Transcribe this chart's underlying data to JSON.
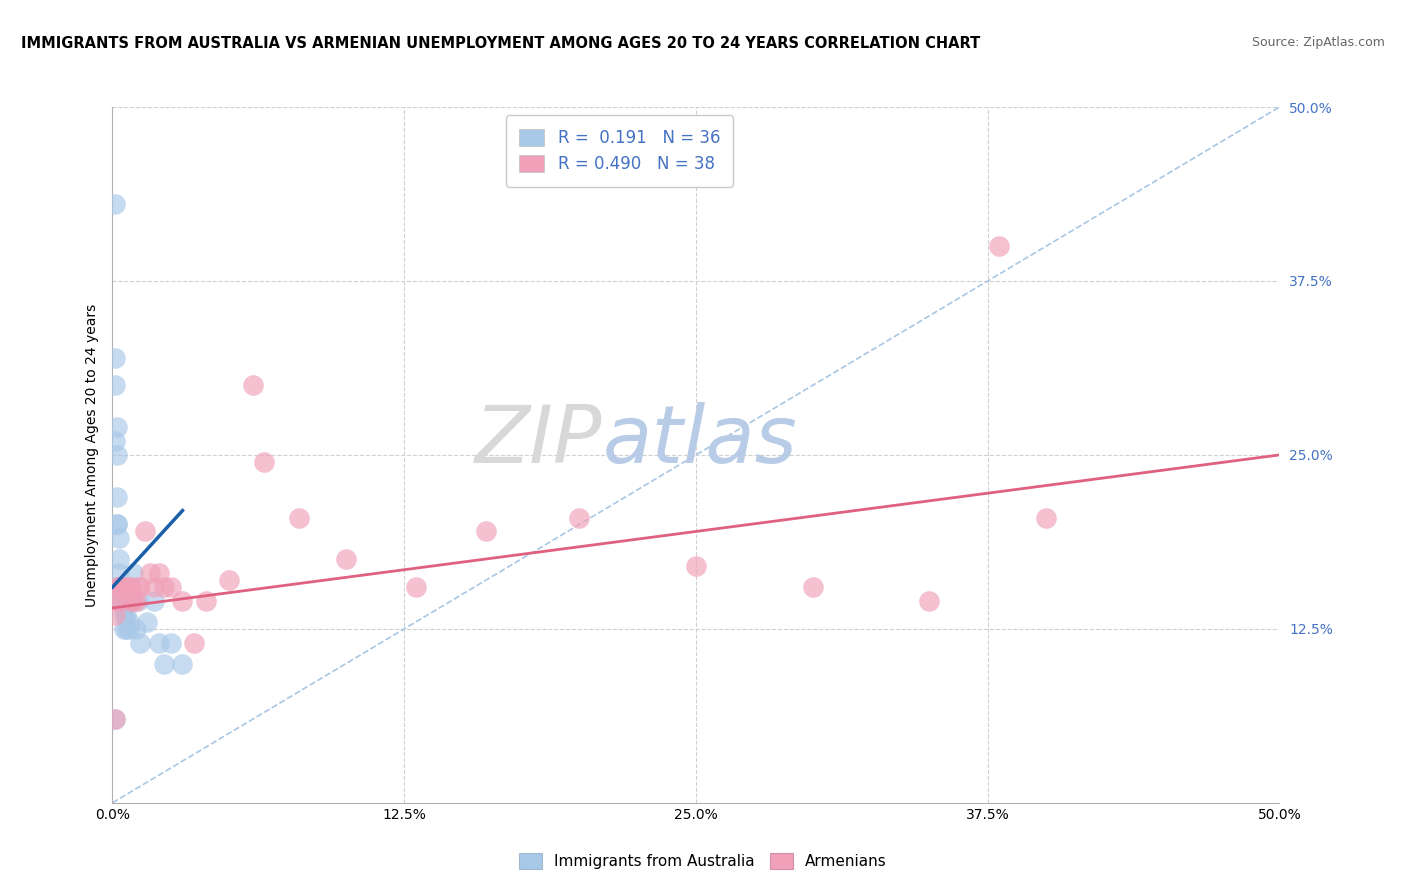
{
  "title": "IMMIGRANTS FROM AUSTRALIA VS ARMENIAN UNEMPLOYMENT AMONG AGES 20 TO 24 YEARS CORRELATION CHART",
  "source": "Source: ZipAtlas.com",
  "ylabel": "Unemployment Among Ages 20 to 24 years",
  "xlim": [
    0.0,
    0.5
  ],
  "ylim": [
    0.0,
    0.5
  ],
  "xtick_vals": [
    0.0,
    0.125,
    0.25,
    0.375,
    0.5
  ],
  "xtick_labels": [
    "0.0%",
    "12.5%",
    "25.0%",
    "37.5%",
    "50.0%"
  ],
  "ytick_vals": [
    0.0,
    0.125,
    0.25,
    0.375,
    0.5
  ],
  "ytick_right_labels": [
    "",
    "12.5%",
    "25.0%",
    "37.5%",
    "50.0%"
  ],
  "australia_color": "#a8c8e8",
  "armenian_color": "#f0a0b8",
  "australia_line_color": "#1a5fa8",
  "armenian_line_color": "#e06080",
  "diagonal_color": "#a0c0e0",
  "australia_x": [
    0.001,
    0.001,
    0.001,
    0.001,
    0.002,
    0.002,
    0.002,
    0.002,
    0.002,
    0.003,
    0.003,
    0.003,
    0.003,
    0.004,
    0.004,
    0.004,
    0.005,
    0.005,
    0.005,
    0.006,
    0.006,
    0.007,
    0.007,
    0.008,
    0.009,
    0.01,
    0.011,
    0.012,
    0.015,
    0.018,
    0.02,
    0.022,
    0.025,
    0.03,
    0.001,
    0.002
  ],
  "australia_y": [
    0.43,
    0.32,
    0.3,
    0.26,
    0.27,
    0.25,
    0.22,
    0.2,
    0.155,
    0.19,
    0.175,
    0.165,
    0.155,
    0.155,
    0.15,
    0.145,
    0.14,
    0.135,
    0.125,
    0.135,
    0.125,
    0.13,
    0.125,
    0.145,
    0.165,
    0.125,
    0.145,
    0.115,
    0.13,
    0.145,
    0.115,
    0.1,
    0.115,
    0.1,
    0.06,
    0.2
  ],
  "armenian_x": [
    0.001,
    0.001,
    0.002,
    0.002,
    0.003,
    0.003,
    0.004,
    0.005,
    0.006,
    0.007,
    0.008,
    0.008,
    0.009,
    0.01,
    0.011,
    0.012,
    0.014,
    0.016,
    0.018,
    0.02,
    0.022,
    0.025,
    0.03,
    0.035,
    0.04,
    0.05,
    0.065,
    0.08,
    0.1,
    0.13,
    0.16,
    0.2,
    0.25,
    0.3,
    0.35,
    0.38,
    0.4,
    0.06
  ],
  "armenian_y": [
    0.06,
    0.135,
    0.145,
    0.155,
    0.155,
    0.155,
    0.145,
    0.155,
    0.155,
    0.155,
    0.155,
    0.145,
    0.145,
    0.145,
    0.155,
    0.155,
    0.195,
    0.165,
    0.155,
    0.165,
    0.155,
    0.155,
    0.145,
    0.115,
    0.145,
    0.16,
    0.245,
    0.205,
    0.175,
    0.155,
    0.195,
    0.205,
    0.17,
    0.155,
    0.145,
    0.4,
    0.205,
    0.3
  ],
  "aus_line_x": [
    0.0,
    0.03
  ],
  "aus_line_y_start": 0.155,
  "aus_line_y_end": 0.21,
  "arm_line_x": [
    0.0,
    0.5
  ],
  "arm_line_y_start": 0.14,
  "arm_line_y_end": 0.25
}
